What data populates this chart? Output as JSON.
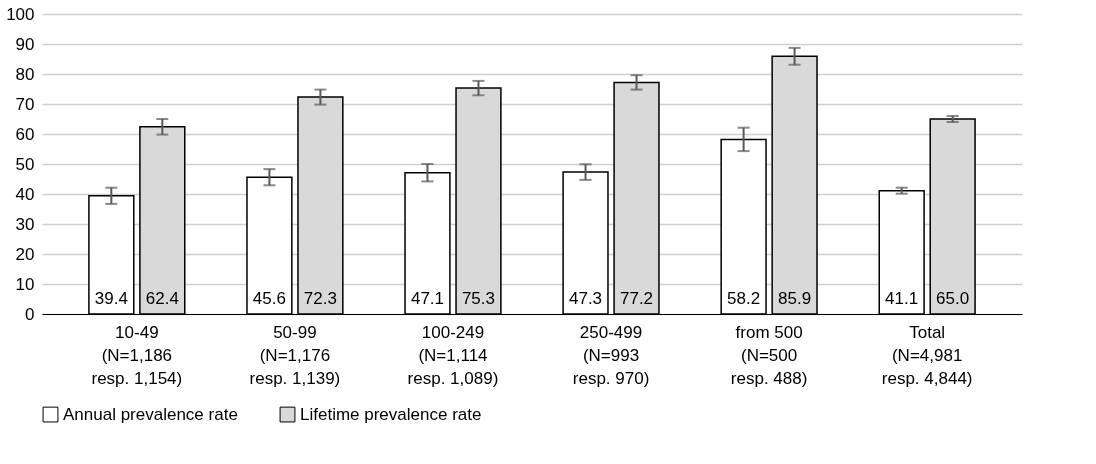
{
  "chart_data": {
    "type": "bar",
    "categories": [
      "10-49\n(N=1,186\nresp. 1,154)",
      "50-99\n(N=1,176\nresp. 1,139)",
      "100-249\n(N=1,114\nresp. 1,089)",
      "250-499\n(N=993\nresp. 970)",
      "from 500\n(N=500\nresp. 488)",
      "Total\n(N=4,981\nresp. 4,844)"
    ],
    "series": [
      {
        "name": "Annual prevalence rate",
        "color": "#ffffff",
        "values": [
          39.4,
          45.6,
          47.1,
          47.3,
          58.2,
          41.1
        ],
        "value_labels": [
          "39.4",
          "45.6",
          "47.1",
          "47.3",
          "58.2",
          "41.1"
        ],
        "errors": [
          2.7,
          2.7,
          2.9,
          2.6,
          3.9,
          1.0
        ]
      },
      {
        "name": "Lifetime prevalence rate",
        "color": "#d9d9d9",
        "values": [
          62.4,
          72.3,
          75.3,
          77.2,
          85.9,
          65.0
        ],
        "value_labels": [
          "62.4",
          "72.3",
          "75.3",
          "77.2",
          "85.9",
          "65.0"
        ],
        "errors": [
          2.6,
          2.5,
          2.4,
          2.4,
          2.8,
          1.0
        ]
      }
    ],
    "ylim": [
      0,
      100
    ],
    "yticks": [
      0,
      10,
      20,
      30,
      40,
      50,
      60,
      70,
      80,
      90,
      100
    ],
    "grid": "y",
    "legend": "bottom"
  }
}
